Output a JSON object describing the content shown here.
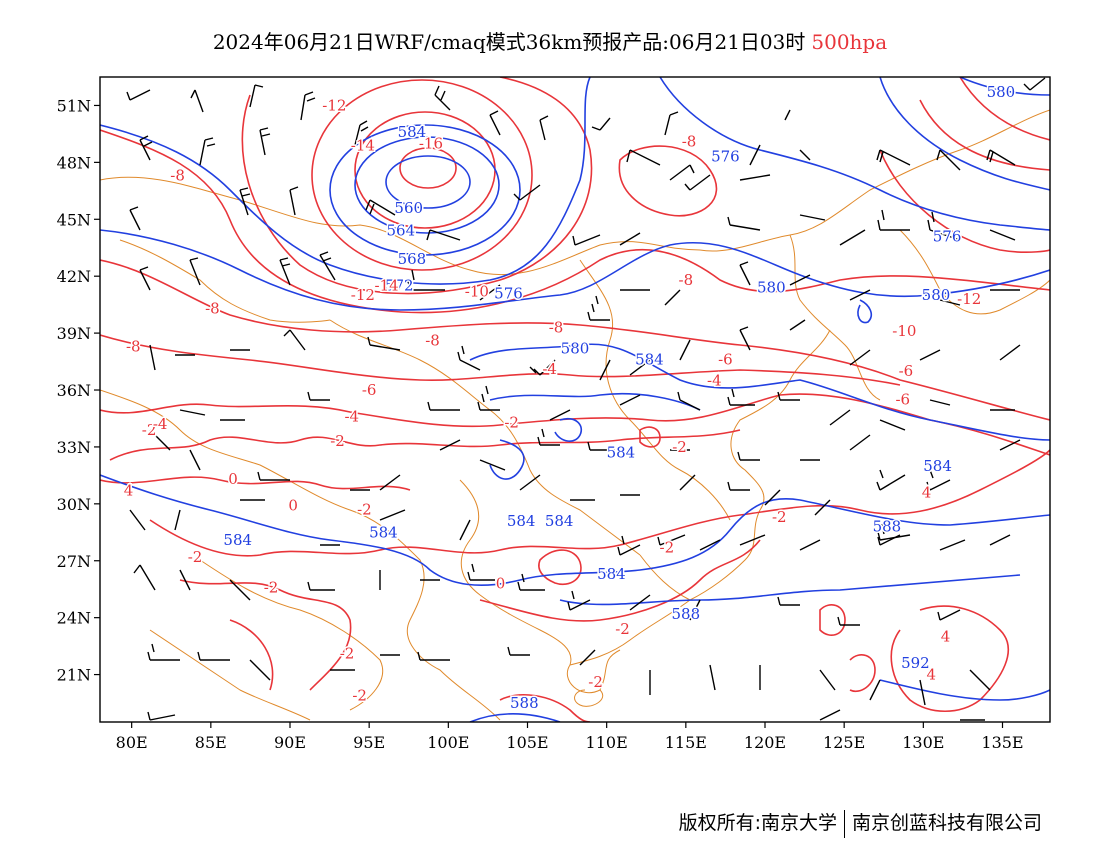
{
  "title": {
    "main": "2024年06月21日WRF/cmaq模式36km预报产品:06月21日03时",
    "level": "500hpa"
  },
  "credit": {
    "left": "版权所有:南京大学",
    "right": "南京创蓝科技有限公司"
  },
  "axes": {
    "lon_ticks": [
      "80E",
      "85E",
      "90E",
      "95E",
      "100E",
      "105E",
      "110E",
      "115E",
      "120E",
      "125E",
      "130E",
      "135E"
    ],
    "lat_ticks": [
      "51N",
      "48N",
      "45N",
      "42N",
      "39N",
      "36N",
      "33N",
      "30N",
      "27N",
      "24N",
      "21N"
    ],
    "lon_range": [
      78,
      138
    ],
    "lat_range": [
      18.5,
      52.5
    ]
  },
  "colors": {
    "height_contour": "#2240e0",
    "temperature_contour": "#e8353a",
    "coastline": "#e08a2c",
    "wind_barb": "#000000",
    "title_level": "#e8353a"
  },
  "height_labels": [
    {
      "text": "584",
      "lon": 97.7,
      "lat": 49.6
    },
    {
      "text": "560",
      "lon": 97.5,
      "lat": 45.6
    },
    {
      "text": "564",
      "lon": 97.0,
      "lat": 44.4
    },
    {
      "text": "568",
      "lon": 97.7,
      "lat": 42.9
    },
    {
      "text": "572",
      "lon": 96.9,
      "lat": 41.5
    },
    {
      "text": "576",
      "lon": 103.8,
      "lat": 41.1
    },
    {
      "text": "576",
      "lon": 117.5,
      "lat": 48.3
    },
    {
      "text": "576",
      "lon": 131.5,
      "lat": 44.1
    },
    {
      "text": "580",
      "lon": 134.9,
      "lat": 51.7
    },
    {
      "text": "580",
      "lon": 108.0,
      "lat": 38.2
    },
    {
      "text": "580",
      "lon": 120.4,
      "lat": 41.4
    },
    {
      "text": "580",
      "lon": 130.8,
      "lat": 41.0
    },
    {
      "text": "584",
      "lon": 112.7,
      "lat": 37.6
    },
    {
      "text": "584",
      "lon": 110.9,
      "lat": 32.7
    },
    {
      "text": "584",
      "lon": 130.9,
      "lat": 32.0
    },
    {
      "text": "584",
      "lon": 86.7,
      "lat": 28.1
    },
    {
      "text": "584",
      "lon": 95.9,
      "lat": 28.5
    },
    {
      "text": "584",
      "lon": 104.6,
      "lat": 29.1
    },
    {
      "text": "584",
      "lon": 107.0,
      "lat": 29.1
    },
    {
      "text": "584",
      "lon": 110.3,
      "lat": 26.3
    },
    {
      "text": "588",
      "lon": 115.0,
      "lat": 24.2
    },
    {
      "text": "588",
      "lon": 127.7,
      "lat": 28.8
    },
    {
      "text": "588",
      "lon": 104.8,
      "lat": 19.5
    },
    {
      "text": "592",
      "lon": 129.5,
      "lat": 21.6
    }
  ],
  "temperature_labels": [
    {
      "text": "-12",
      "lon": 92.8,
      "lat": 51.0
    },
    {
      "text": "-14",
      "lon": 94.6,
      "lat": 48.9
    },
    {
      "text": "-16",
      "lon": 98.9,
      "lat": 49.0
    },
    {
      "text": "-8",
      "lon": 82.9,
      "lat": 47.3
    },
    {
      "text": "-8",
      "lon": 115.2,
      "lat": 49.1
    },
    {
      "text": "-14",
      "lon": 96.1,
      "lat": 41.5
    },
    {
      "text": "-12",
      "lon": 94.6,
      "lat": 41.0
    },
    {
      "text": "-10",
      "lon": 101.8,
      "lat": 41.2
    },
    {
      "text": "-8",
      "lon": 85.1,
      "lat": 40.3
    },
    {
      "text": "-8",
      "lon": 80.1,
      "lat": 38.3
    },
    {
      "text": "-8",
      "lon": 99.0,
      "lat": 38.6
    },
    {
      "text": "-8",
      "lon": 106.8,
      "lat": 39.3
    },
    {
      "text": "-8",
      "lon": 115.0,
      "lat": 41.8
    },
    {
      "text": "-12",
      "lon": 132.9,
      "lat": 40.8
    },
    {
      "text": "-10",
      "lon": 128.8,
      "lat": 39.1
    },
    {
      "text": "-6",
      "lon": 95.0,
      "lat": 36.0
    },
    {
      "text": "-4",
      "lon": 106.4,
      "lat": 37.1
    },
    {
      "text": "-6",
      "lon": 117.5,
      "lat": 37.6
    },
    {
      "text": "-4",
      "lon": 116.8,
      "lat": 36.5
    },
    {
      "text": "-6",
      "lon": 128.9,
      "lat": 37.0
    },
    {
      "text": "-6",
      "lon": 128.7,
      "lat": 35.5
    },
    {
      "text": "-4",
      "lon": 93.9,
      "lat": 34.6
    },
    {
      "text": "-2",
      "lon": 81.1,
      "lat": 33.9
    },
    {
      "text": "-4",
      "lon": 81.8,
      "lat": 34.2
    },
    {
      "text": "-2",
      "lon": 93.0,
      "lat": 33.3
    },
    {
      "text": "-2",
      "lon": 104.0,
      "lat": 34.3
    },
    {
      "text": "-2",
      "lon": 114.6,
      "lat": 33.0
    },
    {
      "text": "0",
      "lon": 86.4,
      "lat": 31.3
    },
    {
      "text": "4",
      "lon": 79.8,
      "lat": 30.7
    },
    {
      "text": "0",
      "lon": 90.2,
      "lat": 29.9
    },
    {
      "text": "-2",
      "lon": 94.7,
      "lat": 29.7
    },
    {
      "text": "-2",
      "lon": 120.9,
      "lat": 29.3
    },
    {
      "text": "-2",
      "lon": 84.0,
      "lat": 27.2
    },
    {
      "text": "-2",
      "lon": 113.8,
      "lat": 27.7
    },
    {
      "text": "0",
      "lon": 103.3,
      "lat": 25.8
    },
    {
      "text": "-2",
      "lon": 88.8,
      "lat": 25.6
    },
    {
      "text": "-2",
      "lon": 111.0,
      "lat": 23.4
    },
    {
      "text": "-2",
      "lon": 93.6,
      "lat": 22.1
    },
    {
      "text": "-2",
      "lon": 94.4,
      "lat": 19.9
    },
    {
      "text": "-2",
      "lon": 109.3,
      "lat": 20.6
    },
    {
      "text": "4",
      "lon": 131.4,
      "lat": 23.0
    },
    {
      "text": "4",
      "lon": 130.5,
      "lat": 21.0
    },
    {
      "text": "4",
      "lon": 130.2,
      "lat": 30.6
    }
  ]
}
